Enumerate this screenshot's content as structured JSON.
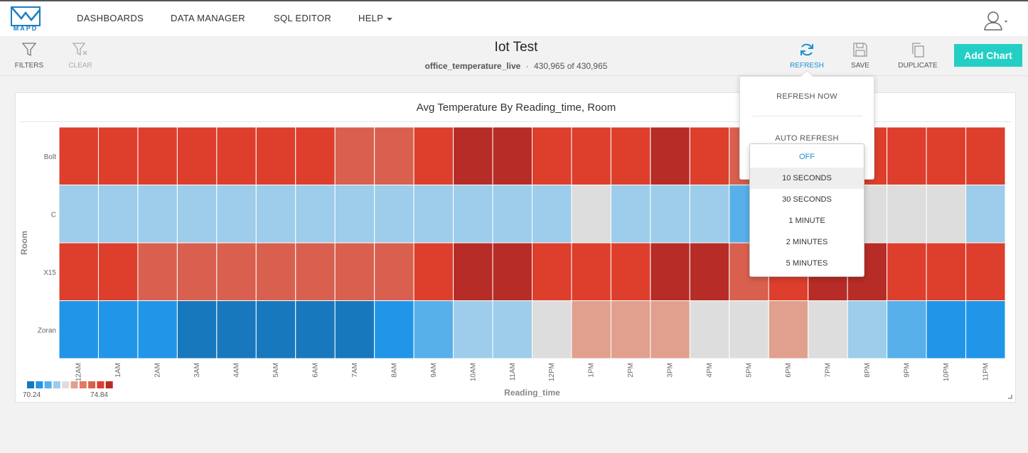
{
  "logo": {
    "text": "MAPD"
  },
  "nav": {
    "dashboards": "DASHBOARDS",
    "data_manager": "DATA MANAGER",
    "sql_editor": "SQL EDITOR",
    "help": "HELP"
  },
  "toolbar": {
    "filters": "FILTERS",
    "clear": "CLEAR",
    "refresh": "REFRESH",
    "save": "SAVE",
    "duplicate": "DUPLICATE",
    "add_chart": "Add Chart"
  },
  "dashboard": {
    "title": "Iot Test",
    "table": "office_temperature_live",
    "separator": "·",
    "count": "430,965 of 430,965"
  },
  "refresh_menu": {
    "refresh_now": "REFRESH NOW",
    "auto_refresh": "AUTO REFRESH",
    "options": [
      "OFF",
      "10 SECONDS",
      "30 SECONDS",
      "1 MINUTE",
      "2 MINUTES",
      "5 MINUTES"
    ],
    "selected": "OFF",
    "hovered": "10 SECONDS"
  },
  "chart_data": {
    "type": "heatmap",
    "title": "Avg Temperature By Reading_time, Room",
    "xlabel": "Reading_time",
    "ylabel": "Room",
    "x": [
      "12AM",
      "1AM",
      "2AM",
      "3AM",
      "4AM",
      "5AM",
      "6AM",
      "7AM",
      "8AM",
      "9AM",
      "10AM",
      "11AM",
      "12PM",
      "1PM",
      "2PM",
      "3PM",
      "4PM",
      "5PM",
      "6PM",
      "7PM",
      "8PM",
      "9PM",
      "10PM",
      "11PM"
    ],
    "y": [
      "Bolt",
      "C",
      "X15",
      "Zoran"
    ],
    "color_bins": [
      "#1878bd",
      "#2196e8",
      "#57b0ea",
      "#9dcdea",
      "#dddddd",
      "#e0a08d",
      "#df7a63",
      "#d9604e",
      "#dd3f2c",
      "#b72c26"
    ],
    "color_range": [
      "70.24",
      "74.84"
    ],
    "bins": [
      [
        8,
        8,
        8,
        8,
        8,
        8,
        8,
        7,
        7,
        8,
        9,
        9,
        8,
        8,
        8,
        9,
        8,
        7,
        8,
        8,
        8,
        8,
        8,
        8
      ],
      [
        3,
        3,
        3,
        3,
        3,
        3,
        3,
        3,
        3,
        3,
        3,
        3,
        3,
        4,
        3,
        3,
        3,
        2,
        3,
        3,
        4,
        4,
        4,
        3
      ],
      [
        8,
        8,
        7,
        7,
        7,
        7,
        7,
        7,
        7,
        8,
        9,
        9,
        8,
        8,
        8,
        9,
        9,
        7,
        8,
        9,
        9,
        8,
        8,
        8
      ],
      [
        1,
        1,
        1,
        0,
        0,
        0,
        0,
        0,
        1,
        2,
        3,
        3,
        4,
        5,
        5,
        5,
        4,
        4,
        5,
        4,
        3,
        2,
        1,
        1
      ]
    ]
  }
}
